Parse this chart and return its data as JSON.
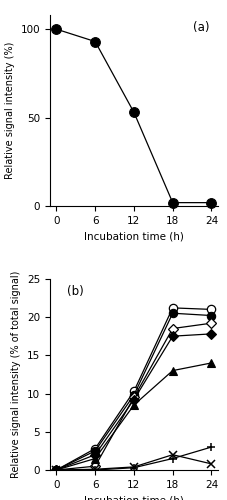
{
  "panel_a": {
    "x": [
      0,
      6,
      12,
      18,
      24
    ],
    "y_mannitol": [
      100,
      93,
      53,
      2,
      2
    ],
    "ylabel": "Relative signal intensity (%)",
    "xlabel": "Incubation time (h)",
    "label": "(a)",
    "ylim": [
      0,
      108
    ],
    "yticks": [
      0,
      50,
      100
    ]
  },
  "panel_b": {
    "x": [
      0,
      6,
      12,
      18,
      24
    ],
    "series": {
      "open_circle": [
        0,
        2.8,
        10.3,
        21.2,
        21.0
      ],
      "filled_circle": [
        0,
        2.5,
        9.8,
        20.5,
        20.2
      ],
      "open_diamond": [
        0,
        0.5,
        9.5,
        18.5,
        19.2
      ],
      "filled_diamond": [
        0,
        2.0,
        9.2,
        17.5,
        17.8
      ],
      "filled_triangle": [
        0,
        1.5,
        8.5,
        13.0,
        14.0
      ],
      "plus": [
        0,
        0.0,
        0.3,
        1.5,
        3.0
      ],
      "cross": [
        0,
        0.1,
        0.4,
        2.0,
        0.8
      ]
    },
    "ylabel": "Relative signal intensity (% of total signal)",
    "xlabel": "Incubation time (h)",
    "label": "(b)",
    "ylim": [
      0,
      25
    ],
    "yticks": [
      0,
      5,
      10,
      15,
      20,
      25
    ]
  }
}
